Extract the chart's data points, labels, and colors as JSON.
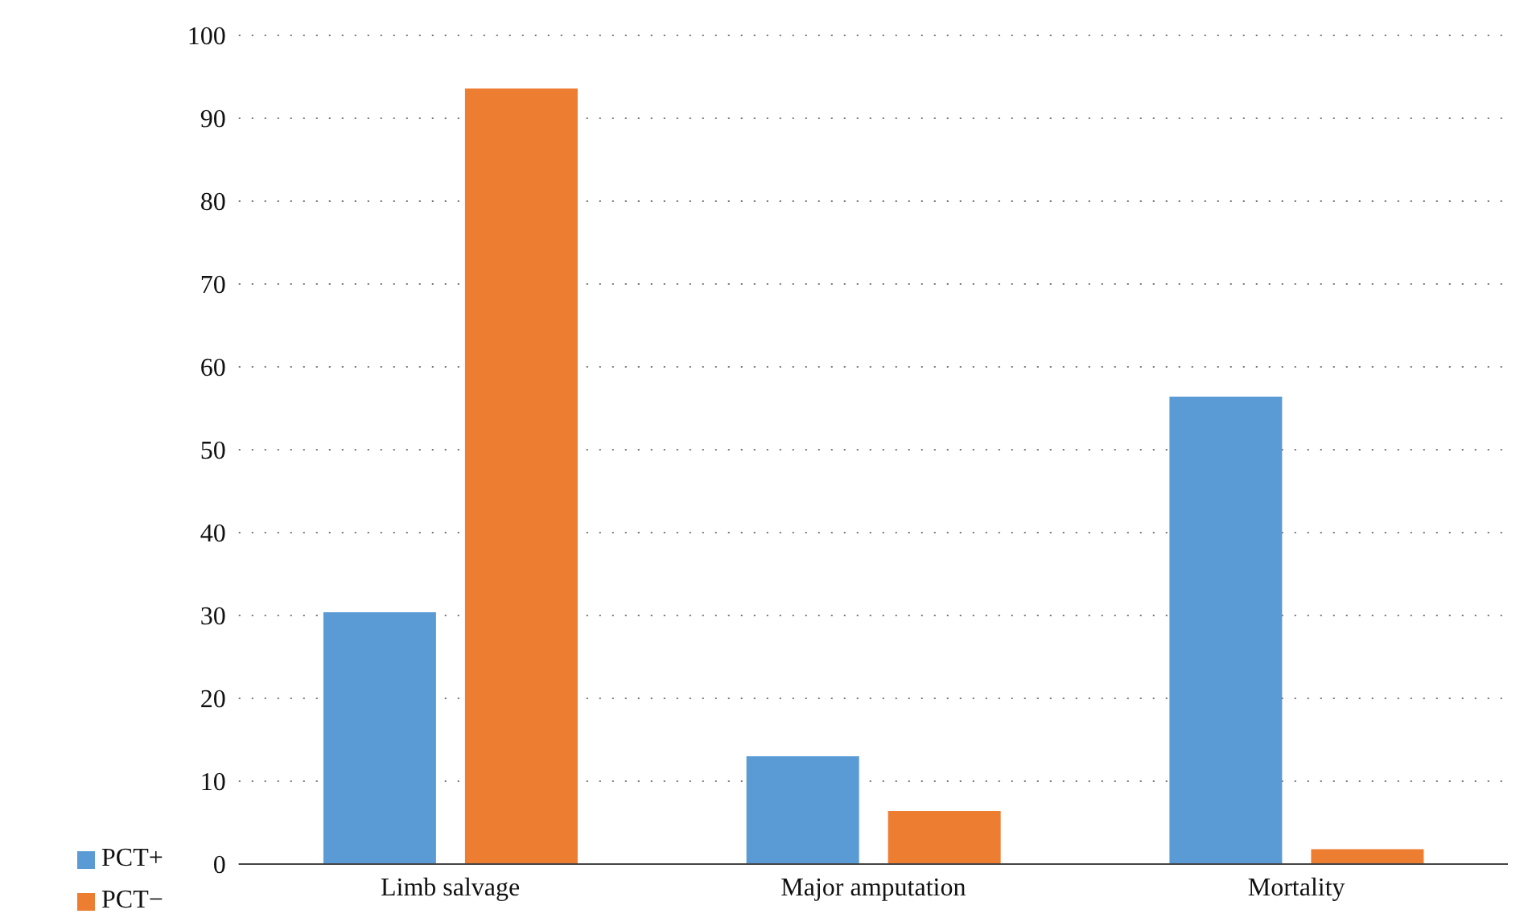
{
  "chart_data": {
    "type": "bar",
    "categories": [
      "Limb salvage",
      "Major amputation",
      "Mortality"
    ],
    "series": [
      {
        "name": "PCT+",
        "color": "#5b9bd5",
        "values": [
          30.4,
          13,
          56.4
        ]
      },
      {
        "name": "PCT−",
        "color": "#ed7d31",
        "values": [
          93.6,
          6.4,
          1.8
        ]
      }
    ],
    "ylim": [
      0,
      100
    ],
    "yticks": [
      0,
      10,
      20,
      30,
      40,
      50,
      60,
      70,
      80,
      90,
      100
    ],
    "grid": "y",
    "legend": "bottom left"
  }
}
